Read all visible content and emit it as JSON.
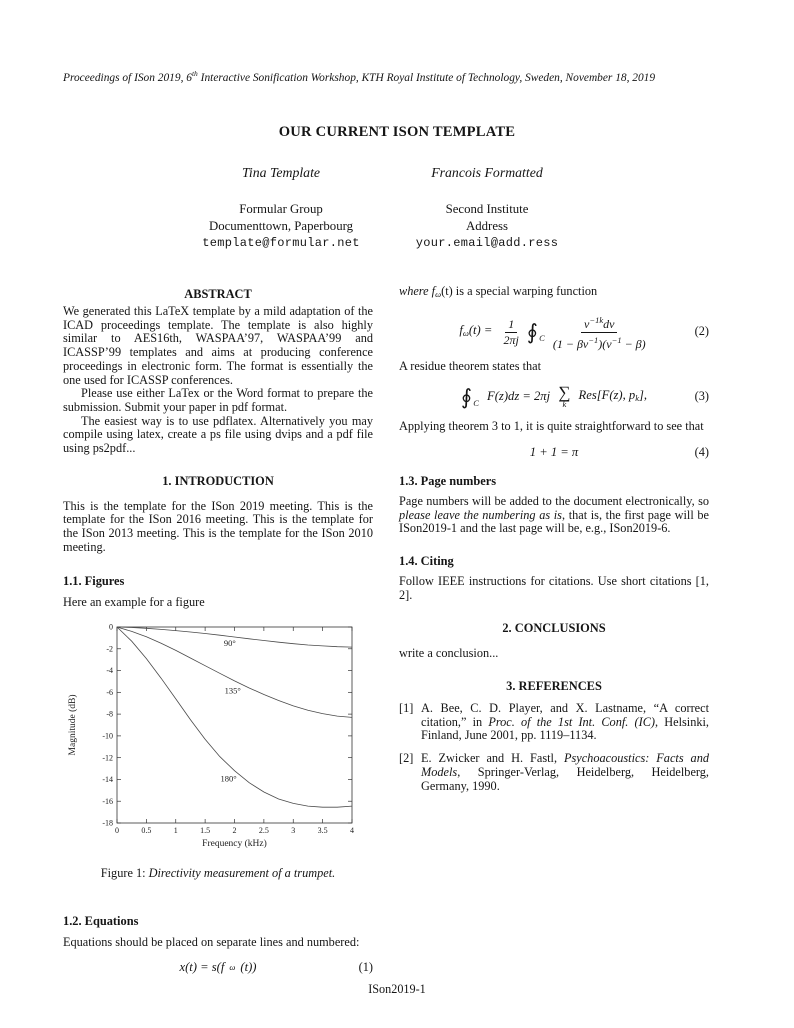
{
  "header": {
    "prefix": "Proceedings of ISon 2019, 6",
    "sup": "th",
    "suffix": " Interactive Sonification Workshop, KTH Royal Institute of Technology, Sweden, November 18, 2019"
  },
  "footer": "ISon2019-1",
  "title": "OUR CURRENT ISON TEMPLATE",
  "authors": [
    {
      "name": "Tina Template",
      "org": "Formular Group",
      "address": "Documenttown, Paperbourg",
      "email": "template@formular.net"
    },
    {
      "name": "Francois Formatted",
      "org": "Second Institute",
      "address": "Address",
      "email": "your.email@add.ress"
    }
  ],
  "abstract": {
    "heading": "ABSTRACT",
    "p1": "We generated this LaTeX template by a mild adaptation of the ICAD proceedings template. The template is also highly similar to AES16th, WASPAA’97, WASPAA’99 and ICASSP’99 templates and aims at producing conference proceedings in electronic form. The format is essentially the one used for ICASSP conferences.",
    "p2": "Please use either LaTex or the Word format to prepare the submission. Submit your paper in pdf format.",
    "p3": "The easiest way is to use pdflatex. Alternatively you may compile using latex, create a ps file using dvips and a pdf file using ps2pdf..."
  },
  "introduction": {
    "heading": "1.  INTRODUCTION",
    "body": "This is the template for the ISon 2019 meeting. This is the template for the ISon 2016 meeting. This is the template for the ISon 2013 meeting. This is the template for the ISon 2010 meeting."
  },
  "figures_section": {
    "heading": "1.1.  Figures",
    "intro": "Here an example for a figure",
    "caption_label": "Figure 1: ",
    "caption_text": "Directivity measurement of a trumpet."
  },
  "equations_section": {
    "heading": "1.2.  Equations",
    "intro": "Equations should be placed on separate lines and numbered:"
  },
  "equations": {
    "eq1": {
      "pre": "x(t) = s(f",
      "sub": "ω",
      "post": "(t))",
      "number": "(1)"
    },
    "where_line": {
      "pre": "where f",
      "sub": "ω",
      "post": "(t) is a special warping function"
    },
    "eq2": {
      "lhs_pre": "f",
      "lhs_sub": "ω",
      "lhs_post": "(t) = ",
      "frac1_num": "1",
      "frac1_den": "2πj",
      "int": "∮",
      "int_sub": "C",
      "frac2_num_base": "ν",
      "frac2_num_sup": "−1k",
      "frac2_num_post": "dν",
      "frac2_den_p1": "(1 − βν",
      "frac2_den_s1": "−1",
      "frac2_den_p2": ")(ν",
      "frac2_den_s2": "−1",
      "frac2_den_p3": " − β)",
      "number": "(2)"
    },
    "residue_line": "A residue theorem states that",
    "eq3": {
      "int": "∮",
      "int_sub": "C",
      "pre": " F(z)dz = 2πj ",
      "sum": "∑",
      "sum_sub": "k",
      "post_pre": " Res[F(z), p",
      "post_sub": "k",
      "post_end": "],",
      "number": "(3)"
    },
    "applying_line": "Applying theorem 3 to 1, it is quite straightforward to see that",
    "eq4": {
      "body": "1 + 1 = π",
      "number": "(4)"
    }
  },
  "page_numbers": {
    "heading": "1.3.  Page numbers",
    "p_pre": "Page numbers will be added to the document electronically, so ",
    "p_italic": "please leave the numbering as is",
    "p_post": ", that is, the first page will be ISon2019-1 and the last page will be, e.g., ISon2019-6."
  },
  "citing": {
    "heading": "1.4.  Citing",
    "body": "Follow IEEE instructions for citations. Use short citations [1, 2]."
  },
  "conclusions": {
    "heading": "2.  CONCLUSIONS",
    "body": "write a conclusion..."
  },
  "references": {
    "heading": "3.  REFERENCES",
    "items": [
      {
        "marker": "[1]",
        "pre": "A. Bee, C. D. Player, and X. Lastname, “A correct citation,” in ",
        "italic": "Proc. of the 1st Int. Conf. (IC)",
        "post": ", Helsinki, Finland, June 2001, pp. 1119–1134."
      },
      {
        "marker": "[2]",
        "pre": "E. Zwicker and H. Fastl, ",
        "italic": "Psychoacoustics: Facts and Models",
        "post": ", Springer-Verlag, Heidelberg, Heidelberg, Germany, 1990."
      }
    ]
  },
  "chart_data": {
    "type": "line",
    "title": "",
    "xlabel": "Frequency (kHz)",
    "ylabel": "Magnitude (dB)",
    "xlim": [
      0,
      4
    ],
    "ylim": [
      -18,
      0
    ],
    "xticks": [
      0,
      0.5,
      1,
      1.5,
      2,
      2.5,
      3,
      3.5,
      4
    ],
    "yticks": [
      0,
      -2,
      -4,
      -6,
      -8,
      -10,
      -12,
      -14,
      -16,
      -18
    ],
    "grid": false,
    "legend_position": "inline-labels",
    "x": [
      0,
      0.25,
      0.5,
      0.75,
      1,
      1.25,
      1.5,
      1.75,
      2,
      2.25,
      2.5,
      2.75,
      3,
      3.25,
      3.5,
      3.75,
      4
    ],
    "series": [
      {
        "name": "90°",
        "label_pos": {
          "x": 1.92,
          "y": -1.75
        },
        "values": [
          0,
          -0.05,
          -0.12,
          -0.22,
          -0.33,
          -0.46,
          -0.6,
          -0.75,
          -0.92,
          -1.08,
          -1.24,
          -1.4,
          -1.53,
          -1.65,
          -1.74,
          -1.81,
          -1.85
        ]
      },
      {
        "name": "135°",
        "label_pos": {
          "x": 1.97,
          "y": -6.1
        },
        "values": [
          0,
          -0.4,
          -0.9,
          -1.5,
          -2.15,
          -2.85,
          -3.55,
          -4.25,
          -4.95,
          -5.6,
          -6.2,
          -6.75,
          -7.25,
          -7.65,
          -7.95,
          -8.18,
          -8.3
        ]
      },
      {
        "name": "180°",
        "label_pos": {
          "x": 1.9,
          "y": -14.2
        },
        "values": [
          0,
          -1.3,
          -2.9,
          -4.7,
          -6.6,
          -8.5,
          -10.3,
          -11.9,
          -13.2,
          -14.3,
          -15.15,
          -15.8,
          -16.2,
          -16.45,
          -16.55,
          -16.55,
          -16.45
        ]
      }
    ]
  }
}
